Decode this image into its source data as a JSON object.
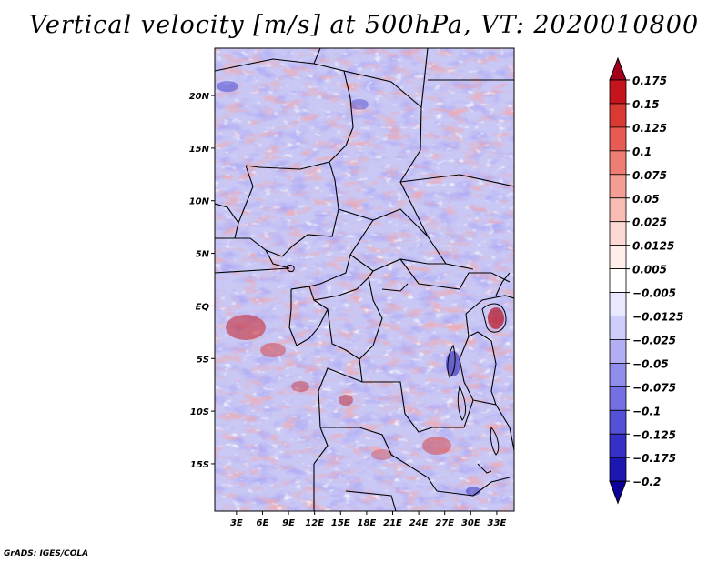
{
  "title": "Vertical velocity [m/s] at 500hPa, VT: 2020010800",
  "credit": "GrADS: IGES/COLA",
  "map": {
    "variable": "Vertical velocity",
    "units": "m/s",
    "level": "500hPa",
    "valid_time": "2020010800",
    "lon_labels": [
      "3E",
      "6E",
      "9E",
      "12E",
      "15E",
      "18E",
      "21E",
      "24E",
      "27E",
      "30E",
      "33E"
    ],
    "lon_values": [
      3,
      6,
      9,
      12,
      15,
      18,
      21,
      24,
      27,
      30,
      33
    ],
    "lat_labels": [
      "20N",
      "15N",
      "10N",
      "5N",
      "EQ",
      "5S",
      "10S",
      "15S"
    ],
    "lat_values": [
      20,
      15,
      10,
      5,
      0,
      -5,
      -10,
      -15
    ],
    "extent": {
      "lon_min": 0.5,
      "lon_max": 35,
      "lat_min": -19.5,
      "lat_max": 24.5
    }
  },
  "colorbar": {
    "labels": [
      "0.175",
      "0.15",
      "0.125",
      "0.1",
      "0.075",
      "0.05",
      "0.025",
      "0.0125",
      "0.005",
      "-0.005",
      "-0.0125",
      "-0.025",
      "-0.05",
      "-0.075",
      "-0.1",
      "-0.125",
      "-0.175",
      "-0.2"
    ],
    "colors": [
      "#a1001b",
      "#c4141c",
      "#da3a34",
      "#e85b52",
      "#ee7e74",
      "#f39d95",
      "#f8bcb5",
      "#fcd9d4",
      "#ffeeea",
      "#ffffff",
      "#e8e8ff",
      "#cfcdfb",
      "#b1aef4",
      "#918dec",
      "#7470e3",
      "#5551d6",
      "#3631c6",
      "#1c17b0",
      "#0d009a"
    ]
  }
}
